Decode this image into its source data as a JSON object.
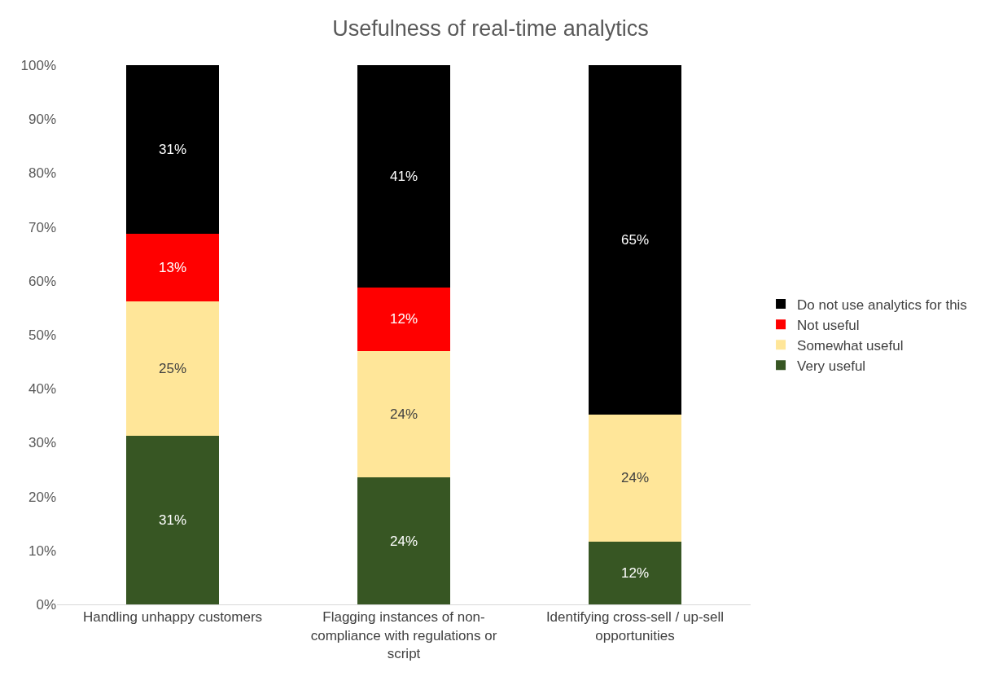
{
  "chart_data": {
    "type": "bar",
    "title": "Usefulness of real-time analytics",
    "stacked": true,
    "categories": [
      "Handling unhappy customers",
      "Flagging instances of non-compliance with regulations or script",
      "Identifying cross-sell / up-sell opportunities"
    ],
    "series": [
      {
        "name": "Very useful",
        "color": "#375623",
        "values": [
          31.2,
          23.5,
          11.7
        ],
        "value_labels": [
          "31%",
          "24%",
          "12%"
        ]
      },
      {
        "name": "Somewhat useful",
        "color": "#ffe699",
        "values": [
          25.0,
          23.5,
          23.5
        ],
        "value_labels": [
          "25%",
          "24%",
          "24%"
        ]
      },
      {
        "name": "Not useful",
        "color": "#ff0000",
        "values": [
          12.6,
          11.8,
          null
        ],
        "value_labels": [
          "13%",
          "12%",
          null
        ]
      },
      {
        "name": "Do not use analytics for this",
        "color": "#000000",
        "values": [
          31.2,
          41.2,
          64.8
        ],
        "value_labels": [
          "31%",
          "41%",
          "65%"
        ]
      }
    ],
    "ylim": [
      0,
      100
    ],
    "yticks": [
      {
        "value": 0,
        "label": "0%"
      },
      {
        "value": 10,
        "label": "10%"
      },
      {
        "value": 20,
        "label": "20%"
      },
      {
        "value": 30,
        "label": "30%"
      },
      {
        "value": 40,
        "label": "40%"
      },
      {
        "value": 50,
        "label": "50%"
      },
      {
        "value": 60,
        "label": "60%"
      },
      {
        "value": 70,
        "label": "70%"
      },
      {
        "value": 80,
        "label": "80%"
      },
      {
        "value": 90,
        "label": "90%"
      },
      {
        "value": 100,
        "label": "100%"
      }
    ],
    "grid": false,
    "legend": "right"
  }
}
